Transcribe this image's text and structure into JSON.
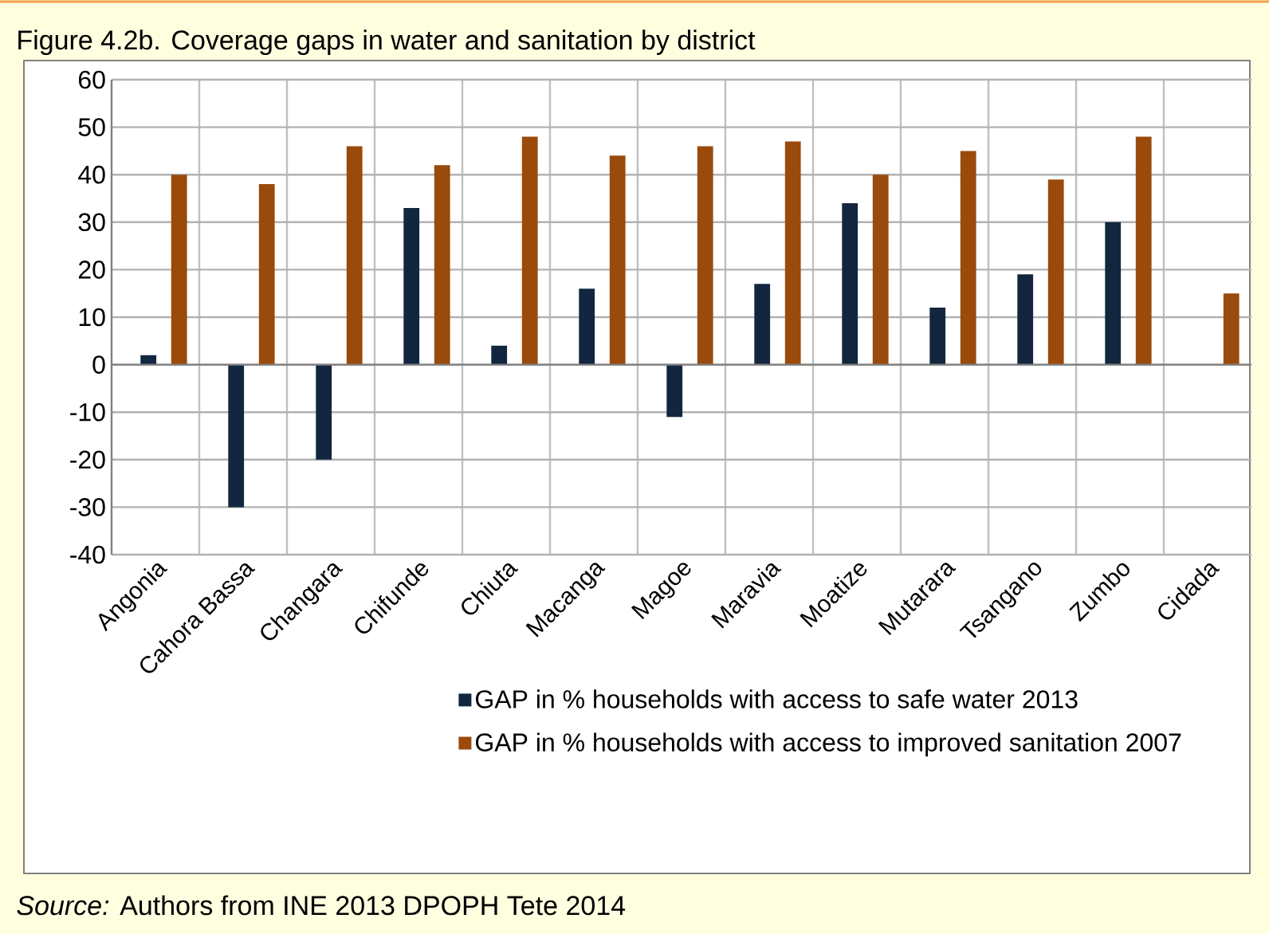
{
  "chart_data": {
    "type": "bar",
    "title": "Figure 4.2b. Coverage gaps in water and sanitation by district",
    "categories": [
      "Angonia",
      "Cahora Bassa",
      "Changara",
      "Chifunde",
      "Chiuta",
      "Macanga",
      "Magoe",
      "Maravia",
      "Moatize",
      "Mutarara",
      "Tsangano",
      "Zumbo",
      "Cidada"
    ],
    "series": [
      {
        "name": "GAP in % households with access to safe water 2013",
        "color": "#12263f",
        "values": [
          2,
          -30,
          -20,
          33,
          4,
          16,
          -11,
          17,
          34,
          12,
          19,
          30,
          null
        ]
      },
      {
        "name": "GAP in % households with access to improved sanitation 2007",
        "color": "#9a4a0b",
        "values": [
          40,
          38,
          46,
          42,
          48,
          44,
          46,
          47,
          40,
          45,
          39,
          48,
          15
        ]
      }
    ],
    "ylim": [
      -40,
      60
    ],
    "yticks": [
      -40,
      -30,
      -20,
      -10,
      0,
      10,
      20,
      30,
      40,
      50,
      60
    ],
    "grid": true,
    "legend": "bottom",
    "annotations": [
      "*Source:* Authors from INE 2013 DPOPH  Tete 2014"
    ]
  }
}
